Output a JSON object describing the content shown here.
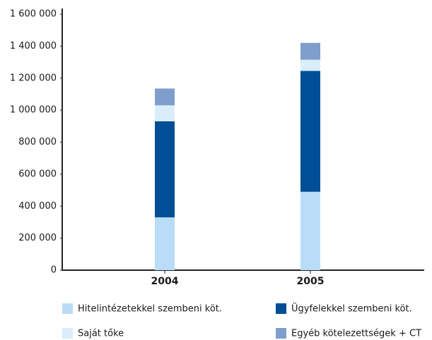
{
  "chart_data": {
    "type": "stacked_bar",
    "categories": [
      "2004",
      "2005"
    ],
    "series": [
      {
        "name": "Hitelintézetekkel szembeni köt.",
        "color": "#b9ddf6",
        "values": [
          330000,
          490000
        ]
      },
      {
        "name": "Ügyfelekkel szembeni köt.",
        "color": "#004f96",
        "values": [
          600000,
          755000
        ]
      },
      {
        "name": "Saját tőke",
        "color": "#daedfb",
        "values": [
          100000,
          70000
        ]
      },
      {
        "name": "Egyéb kötelezettségek + CT",
        "color": "#7f9ecb",
        "values": [
          105000,
          105000
        ]
      }
    ],
    "ylim": [
      0,
      1600000
    ],
    "yticks": [
      0,
      {
        "value": 200000,
        "label": "200 000"
      },
      {
        "value": 400000,
        "label": "400 000"
      },
      {
        "value": 600000,
        "label": "600 000"
      },
      {
        "value": 800000,
        "label": "800 000"
      },
      {
        "value": 1000000,
        "label": "1 000 000"
      },
      {
        "value": 1200000,
        "label": "1 200 000"
      },
      {
        "value": 1400000,
        "label": "1 400 000"
      },
      {
        "value": 1600000,
        "label": "1 600 000"
      }
    ],
    "legend": "bottom"
  }
}
